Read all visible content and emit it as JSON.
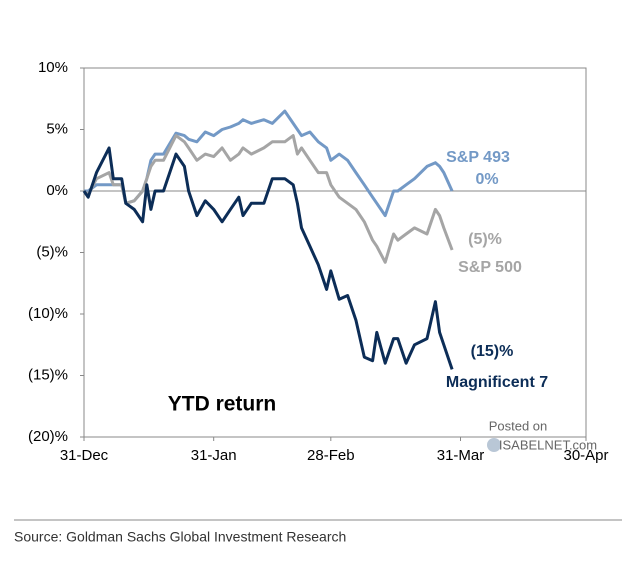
{
  "chart_data": {
    "type": "line",
    "title": "YTD return",
    "source": "Source: Goldman Sachs Global Investment Research",
    "watermark": [
      "Posted on",
      "ISABELNET.com"
    ],
    "x": [
      0,
      1,
      3,
      6,
      7,
      9,
      10,
      12,
      14,
      15,
      16,
      17,
      19,
      22,
      24,
      25,
      27,
      29,
      31,
      33,
      35,
      37,
      38,
      40,
      43,
      45,
      48,
      50,
      51,
      52,
      54,
      56,
      58,
      59,
      61,
      63,
      65,
      67,
      69,
      70,
      72,
      74,
      75,
      77,
      79,
      82,
      84,
      85,
      86,
      88
    ],
    "xlim": [
      0,
      120
    ],
    "xticks": [
      {
        "value": 0,
        "label": "31-Dec"
      },
      {
        "value": 31,
        "label": "31-Jan"
      },
      {
        "value": 59,
        "label": "28-Feb"
      },
      {
        "value": 90,
        "label": "31-Mar"
      },
      {
        "value": 120,
        "label": "30-Apr"
      }
    ],
    "ylim": [
      -20,
      10
    ],
    "yticks": [
      {
        "value": 10,
        "label": "10%"
      },
      {
        "value": 5,
        "label": "5%"
      },
      {
        "value": 0,
        "label": "0%"
      },
      {
        "value": -5,
        "label": "(5)%"
      },
      {
        "value": -10,
        "label": "(10)%"
      },
      {
        "value": -15,
        "label": "(15)%"
      },
      {
        "value": -20,
        "label": "(20)%"
      }
    ],
    "zero_line": true,
    "series": [
      {
        "name": "S&P 493",
        "color": "#7399c6",
        "end_label": "0%",
        "values": [
          0,
          0,
          0.5,
          0.5,
          0.5,
          0.5,
          -1,
          -0.8,
          0,
          1,
          2.5,
          3,
          3,
          4.7,
          4.5,
          4.2,
          4,
          4.8,
          4.5,
          5,
          5.2,
          5.5,
          5.8,
          5.5,
          5.8,
          5.5,
          6.5,
          5.5,
          5,
          4.5,
          4.8,
          4,
          3.5,
          2.5,
          3,
          2.5,
          1.5,
          0.5,
          -0.5,
          -1,
          -2,
          0,
          0,
          0.5,
          1,
          2,
          2.3,
          2,
          1.5,
          0
        ]
      },
      {
        "name": "S&P 500",
        "color": "#a5a5a5",
        "end_label": "(5)%",
        "values": [
          0,
          -0.3,
          1,
          1.5,
          0.5,
          0.5,
          -1,
          -0.8,
          0,
          1,
          2,
          2.5,
          2.5,
          4.5,
          4,
          3.5,
          2.5,
          3,
          2.8,
          3.5,
          2.5,
          3,
          3.5,
          3,
          3.5,
          4,
          4,
          4.5,
          3,
          3.5,
          2.5,
          1.5,
          1.5,
          0.5,
          -0.5,
          -1,
          -1.5,
          -2.5,
          -4,
          -4.5,
          -5.8,
          -3.5,
          -4,
          -3.5,
          -3,
          -3.5,
          -1.5,
          -2,
          -3,
          -4.8
        ]
      },
      {
        "name": "Magnificent 7",
        "color": "#0c2d57",
        "end_label": "(15)%",
        "values": [
          0,
          -0.5,
          1.5,
          3.5,
          1,
          1,
          -1,
          -1.5,
          -2.5,
          0.5,
          -1.5,
          0,
          0,
          3,
          2,
          0,
          -2,
          -0.8,
          -1.5,
          -2.5,
          -1.5,
          -0.5,
          -2,
          -1,
          -1,
          1,
          1,
          0.5,
          -1,
          -3,
          -4.5,
          -6,
          -8,
          -6.5,
          -8.8,
          -8.5,
          -10.5,
          -13.5,
          -13.8,
          -11.5,
          -14,
          -12,
          -12,
          -14,
          -12.5,
          -12,
          -9,
          -11.5,
          -12.5,
          -14.5
        ]
      }
    ]
  }
}
